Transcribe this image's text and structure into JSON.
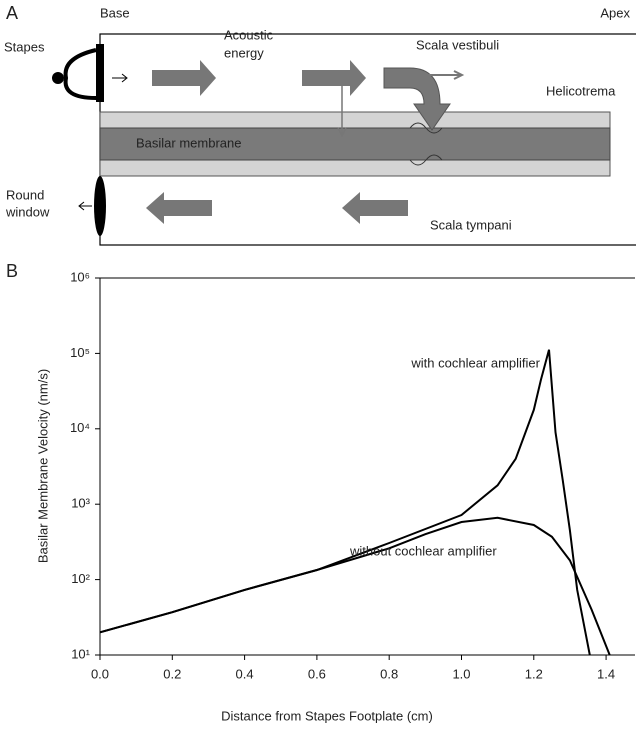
{
  "panel_a": {
    "panel_label": "A",
    "base": "Base",
    "apex": "Apex",
    "stapes": "Stapes",
    "acoustic_energy": [
      "Acoustic",
      "energy"
    ],
    "scala_vestibuli": "Scala vestibuli",
    "helicotrema": "Helicotrema",
    "basilar_membrane": "Basilar membrane",
    "round_window": [
      "Round",
      "window"
    ],
    "scala_tympani": "Scala tympani"
  },
  "chart_data": {
    "type": "line",
    "panel_label": "B",
    "x_label": "Distance from Stapes Footplate (cm)",
    "y_label": "Basilar Membrane Velocity (nm/s)",
    "xlim": [
      0,
      1.48
    ],
    "ylim": [
      10,
      1000000
    ],
    "yscale": "log",
    "grid": false,
    "xticks": [
      {
        "value": 0,
        "label": "0.0"
      },
      0.2,
      0.4,
      0.6,
      0.8,
      {
        "value": 1,
        "label": "1.0"
      },
      1.2,
      1.4
    ],
    "yticks": [
      {
        "value": 10,
        "label": "10¹"
      },
      {
        "value": 100,
        "label": "10²"
      },
      {
        "value": 1000,
        "label": "10³"
      },
      {
        "value": 10000,
        "label": "10⁴"
      },
      {
        "value": 100000,
        "label": "10⁵"
      },
      {
        "value": 1000000,
        "label": "10⁶"
      }
    ],
    "series": [
      {
        "name": "with cochlear amplifier",
        "color": "#000000",
        "x": [
          0,
          0.2,
          0.4,
          0.6,
          0.8,
          1.0,
          1.1,
          1.15,
          1.2,
          1.22,
          1.242,
          1.26,
          1.28,
          1.3,
          1.32,
          1.355
        ],
        "values": [
          20,
          37,
          73,
          134,
          306,
          720,
          1780,
          4000,
          17800,
          45000,
          112000,
          9000,
          2100,
          450,
          73,
          10
        ]
      },
      {
        "name": "without cochlear amplifier",
        "color": "#000000",
        "x": [
          0,
          0.2,
          0.4,
          0.6,
          0.8,
          0.9,
          1.0,
          1.1,
          1.2,
          1.25,
          1.3,
          1.36,
          1.41
        ],
        "values": [
          20,
          37,
          73,
          134,
          260,
          400,
          580,
          660,
          530,
          370,
          180,
          40,
          10
        ]
      }
    ]
  }
}
